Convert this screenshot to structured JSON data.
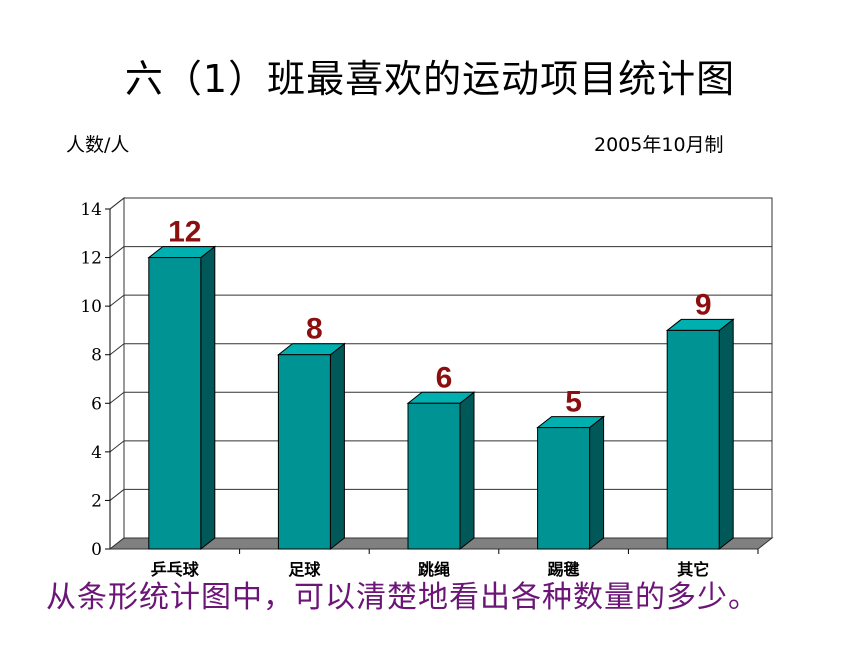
{
  "header": {
    "title": "六（1）班最喜欢的运动项目统计图",
    "unit_label": "人数/人",
    "made_date": "2005年10月制"
  },
  "caption": "从条形统计图中，可以清楚地看出各种数量的多少。",
  "colors": {
    "bar_front": "#009393",
    "bar_side": "#005858",
    "bar_top": "#00b0b0",
    "data_label": "#8b0f0f",
    "caption": "#6b1677",
    "floor": "#808080"
  },
  "chart_data": {
    "type": "bar",
    "categories": [
      "乒乓球",
      "足球",
      "跳绳",
      "踢毽",
      "其它"
    ],
    "values": [
      12,
      8,
      6,
      5,
      9
    ],
    "data_labels": [
      "12",
      "8",
      "6",
      "5",
      "9"
    ],
    "y_ticks": [
      "0",
      "2",
      "4",
      "6",
      "8",
      "10",
      "12",
      "14"
    ],
    "ylim": [
      0,
      14
    ],
    "grid": true,
    "legend": "none"
  }
}
